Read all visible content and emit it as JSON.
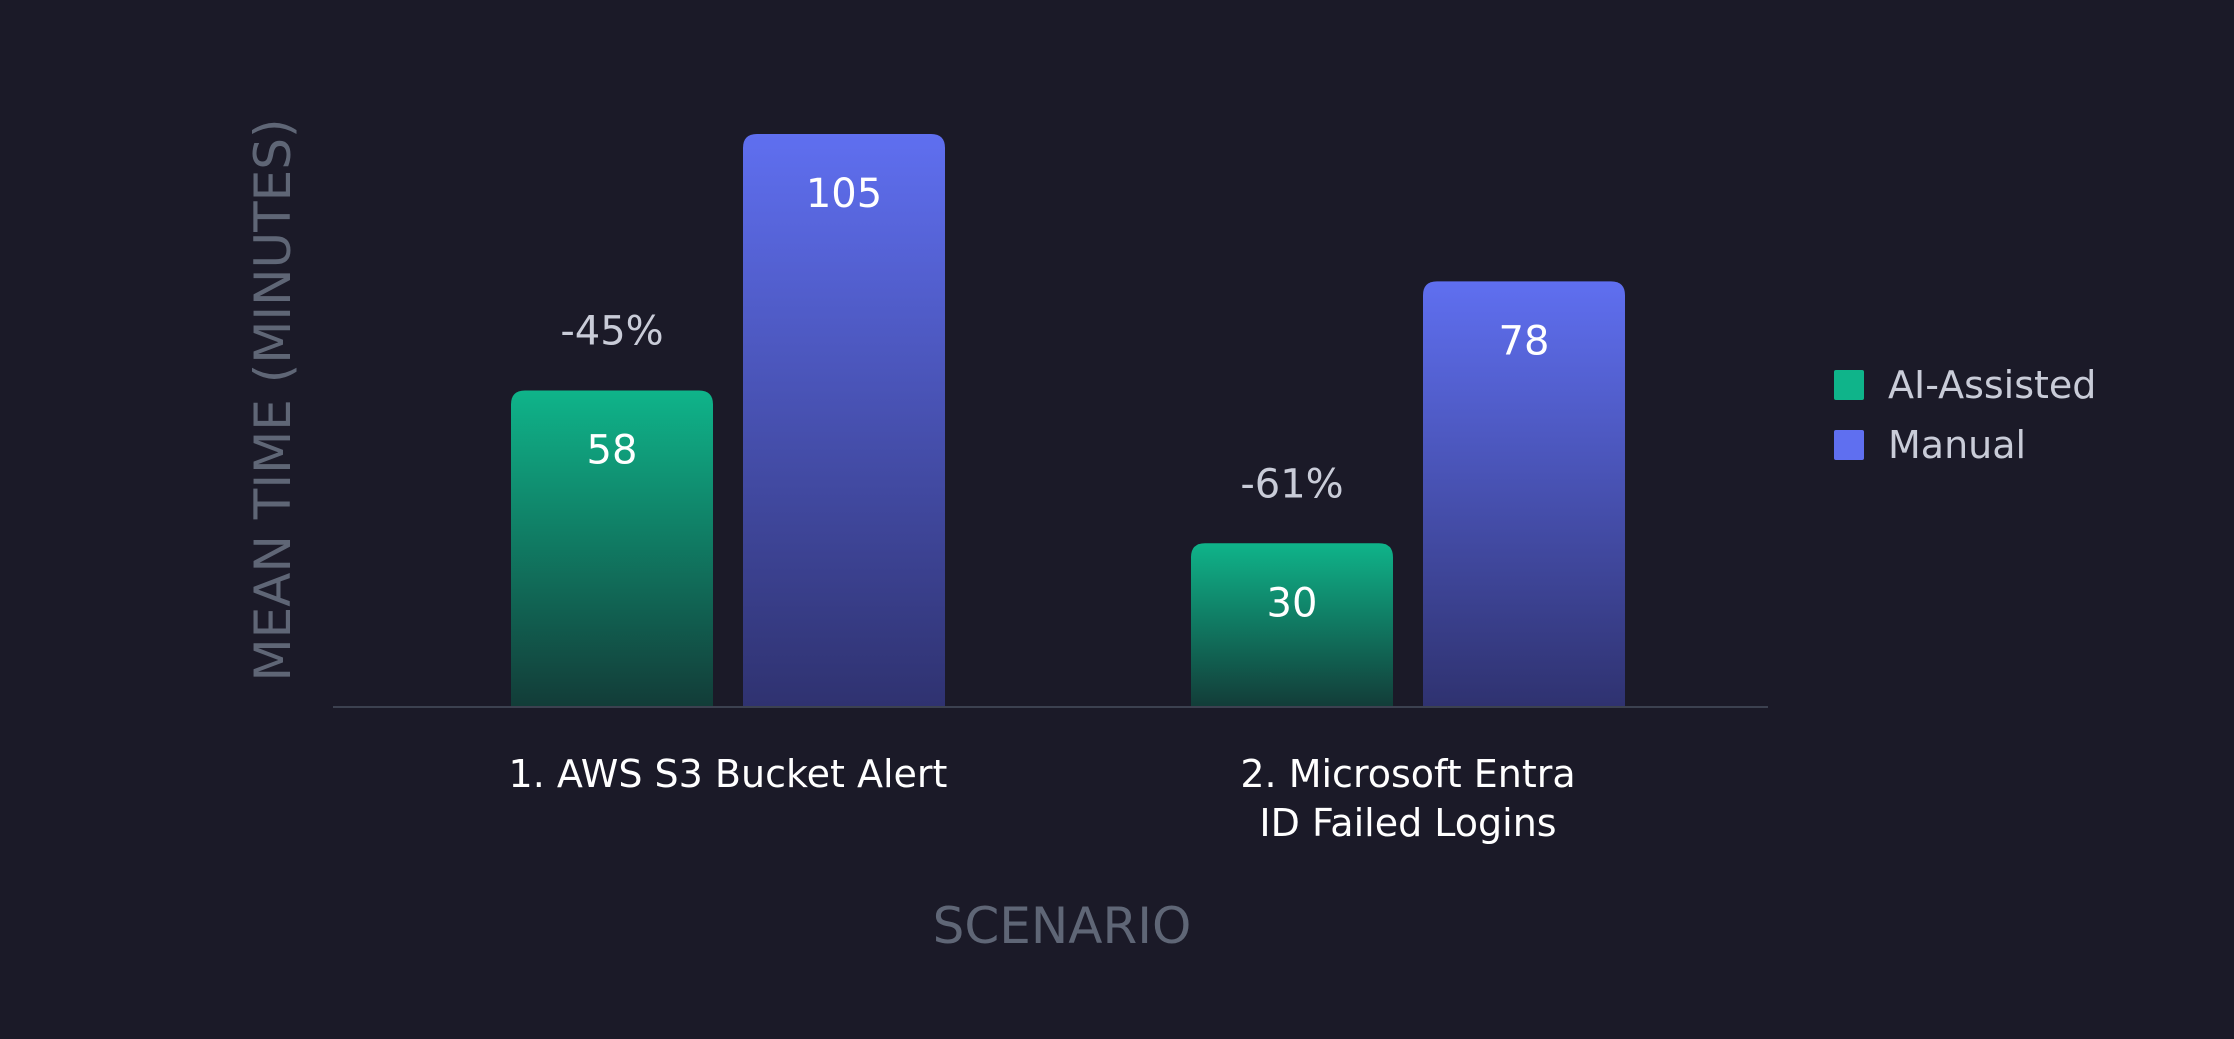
{
  "chart_data": {
    "type": "bar",
    "title": "",
    "xlabel": "SCENARIO",
    "ylabel": "MEAN TIME (MINUTES)",
    "categories": [
      "1. AWS S3 Bucket Alert",
      "2. Microsoft Entra ID Failed Logins"
    ],
    "category_lines": [
      [
        "1. AWS S3 Bucket Alert"
      ],
      [
        "2. Microsoft Entra",
        "ID Failed Logins"
      ]
    ],
    "series": [
      {
        "name": "AI-Assisted",
        "values": [
          58,
          30
        ],
        "color": "#0fb48a",
        "color_end": "#123c38"
      },
      {
        "name": "Manual",
        "values": [
          105,
          78
        ],
        "color": "#5f6ff0",
        "color_end": "#2f3270"
      }
    ],
    "annotations": [
      "-45%",
      "-61%"
    ],
    "ylim": [
      0,
      105
    ],
    "grid": false,
    "legend": "right"
  }
}
